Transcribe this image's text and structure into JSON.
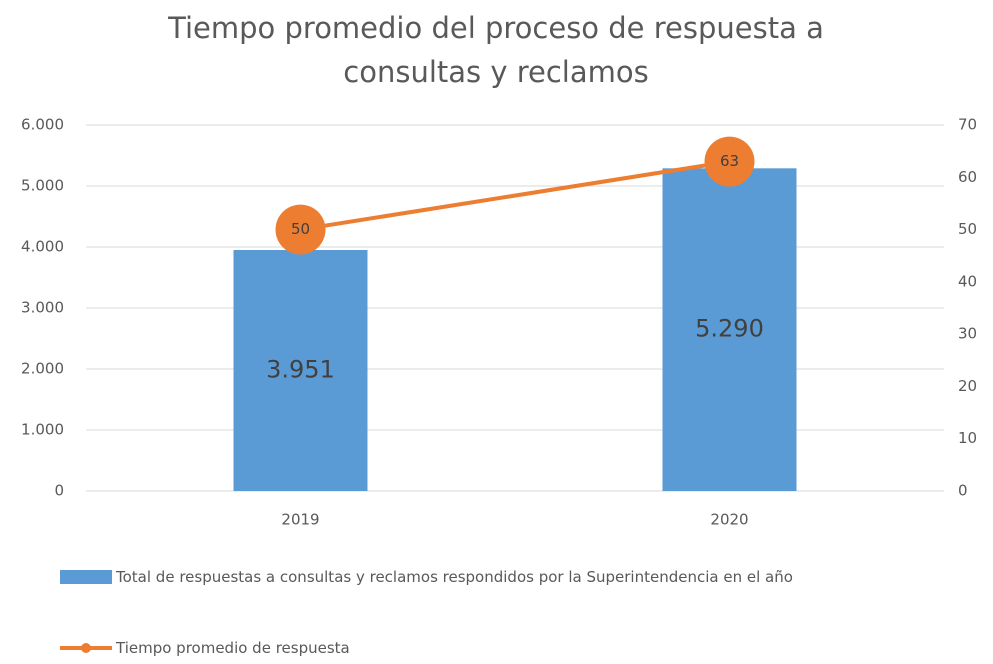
{
  "chart_data": {
    "type": "bar",
    "title": "Tiempo promedio del proceso de respuesta a consultas y reclamos",
    "categories": [
      "2019",
      "2020"
    ],
    "series": [
      {
        "name": "Total de respuestas a consultas y reclamos respondidos por la Superintendencia en el año",
        "type": "bar",
        "color": "#5b9bd5",
        "values": [
          3951,
          5290
        ],
        "value_labels": [
          "3.951",
          "5.290"
        ]
      },
      {
        "name": "Tiempo promedio de respuesta",
        "type": "line",
        "axis": "y2",
        "color": "#ed7d31",
        "values": [
          50,
          63
        ]
      }
    ],
    "ylim": [
      0,
      6000
    ],
    "yticks": [
      0,
      {
        "value": 1000,
        "label": "1.000"
      },
      {
        "value": 2000,
        "label": "2.000"
      },
      {
        "value": 3000,
        "label": "3.000"
      },
      {
        "value": 4000,
        "label": "4.000"
      },
      {
        "value": 5000,
        "label": "5.000"
      },
      {
        "value": 6000,
        "label": "6.000"
      }
    ],
    "y2lim": [
      0,
      70
    ],
    "y2ticks": [
      0,
      10,
      20,
      30,
      40,
      50,
      60,
      70
    ],
    "grid": true,
    "legend": "bottom"
  }
}
